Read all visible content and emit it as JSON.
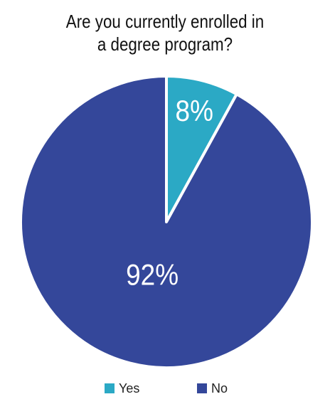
{
  "chart_data": {
    "type": "pie",
    "title": "Are you currently enrolled in a degree program?",
    "categories": [
      "Yes",
      "No"
    ],
    "values": [
      8,
      92
    ],
    "value_labels": [
      "8%",
      "92%"
    ],
    "colors": [
      "#2ba9c5",
      "#34479a"
    ],
    "legend": "bottom"
  }
}
